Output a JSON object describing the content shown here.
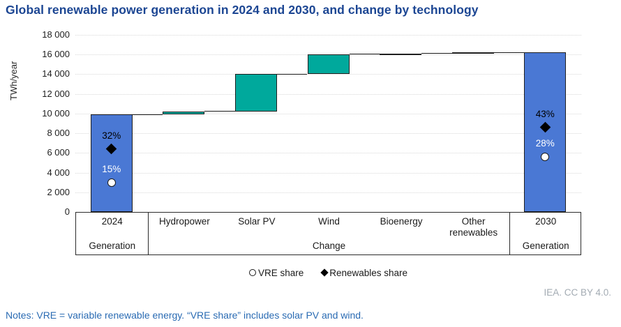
{
  "title": "Global renewable power generation in 2024 and 2030, and change by technology",
  "legend": {
    "items": [
      {
        "marker": "circle-icon",
        "label": "VRE share"
      },
      {
        "marker": "diamond-icon",
        "label": "Renewables share"
      }
    ]
  },
  "footer": {
    "credit": "IEA. CC BY 4.0.",
    "notes": "Notes: VRE = variable renewable energy. “VRE share” includes solar PV and wind."
  },
  "colors": {
    "total_bar": "#4A78D4",
    "change_bar": "#00A99C",
    "bar_outline": "#1F1F1F",
    "title_text": "#1C4693",
    "notes_text": "#2A6BB3",
    "credit_text": "#A3ABB3",
    "gridline": "#D9D9D9"
  },
  "chart_data": {
    "type": "bar",
    "subtype": "waterfall",
    "title": "Global renewable power generation in 2024 and 2030, and change by technology",
    "ylabel": "TWh/year",
    "ylim": [
      0,
      18000
    ],
    "grid": true,
    "yticks": [
      {
        "value": 0,
        "label": "0"
      },
      {
        "value": 2000,
        "label": "2 000"
      },
      {
        "value": 4000,
        "label": "4 000"
      },
      {
        "value": 6000,
        "label": "6 000"
      },
      {
        "value": 8000,
        "label": "8 000"
      },
      {
        "value": 10000,
        "label": "10 000"
      },
      {
        "value": 12000,
        "label": "12 000"
      },
      {
        "value": 14000,
        "label": "14 000"
      },
      {
        "value": 16000,
        "label": "16 000"
      },
      {
        "value": 18000,
        "label": "18 000"
      }
    ],
    "categories": [
      "2024",
      "Hydropower",
      "Solar PV",
      "Wind",
      "Bioenergy",
      "Other renewables",
      "2030"
    ],
    "bars": [
      {
        "category": "2024",
        "start": 0,
        "end": 9900,
        "role": "total"
      },
      {
        "category": "Hydropower",
        "start": 9900,
        "end": 10200,
        "role": "change",
        "change": 300
      },
      {
        "category": "Solar PV",
        "start": 10200,
        "end": 14000,
        "role": "change",
        "change": 3800
      },
      {
        "category": "Wind",
        "start": 14000,
        "end": 16000,
        "role": "change",
        "change": 2000
      },
      {
        "category": "Bioenergy",
        "start": 16000,
        "end": 16100,
        "role": "change",
        "change": 100
      },
      {
        "category": "Other renewables",
        "start": 16100,
        "end": 16200,
        "role": "change",
        "change": 100
      },
      {
        "category": "2030",
        "start": 0,
        "end": 16200,
        "role": "total"
      }
    ],
    "group_labels": [
      {
        "label": "Generation",
        "span": [
          0,
          0
        ]
      },
      {
        "label": "Change",
        "span": [
          1,
          5
        ]
      },
      {
        "label": "Generation",
        "span": [
          6,
          6
        ]
      }
    ],
    "markers": [
      {
        "bar": "2024",
        "shape": "diamond",
        "label": "32%",
        "value_pct": 32,
        "label_color": "#000000"
      },
      {
        "bar": "2024",
        "shape": "circle",
        "label": "15%",
        "value_pct": 15,
        "label_color": "#ffffff"
      },
      {
        "bar": "2030",
        "shape": "diamond",
        "label": "43%",
        "value_pct": 43,
        "label_color": "#000000"
      },
      {
        "bar": "2030",
        "shape": "circle",
        "label": "28%",
        "value_pct": 28,
        "label_color": "#ffffff"
      }
    ],
    "pct_to_twh": 200,
    "legend_position": "bottom-center"
  }
}
